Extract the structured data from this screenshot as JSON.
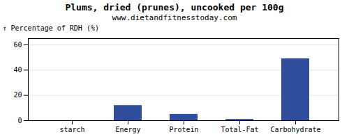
{
  "chart_data": {
    "type": "bar",
    "title": "Plums, dried (prunes), uncooked per 100g",
    "subtitle": "www.dietandfitnesstoday.com",
    "categories": [
      "starch",
      "Energy",
      "Protein",
      "Total-Fat",
      "Carbohydrate"
    ],
    "values": [
      0,
      12,
      5,
      1,
      49
    ],
    "color": "#2e4d9b",
    "ylabel": "Percentage of RDH (%)",
    "ylim": [
      0,
      65
    ],
    "yticks": [
      0,
      20,
      40,
      60
    ],
    "grid": true
  }
}
